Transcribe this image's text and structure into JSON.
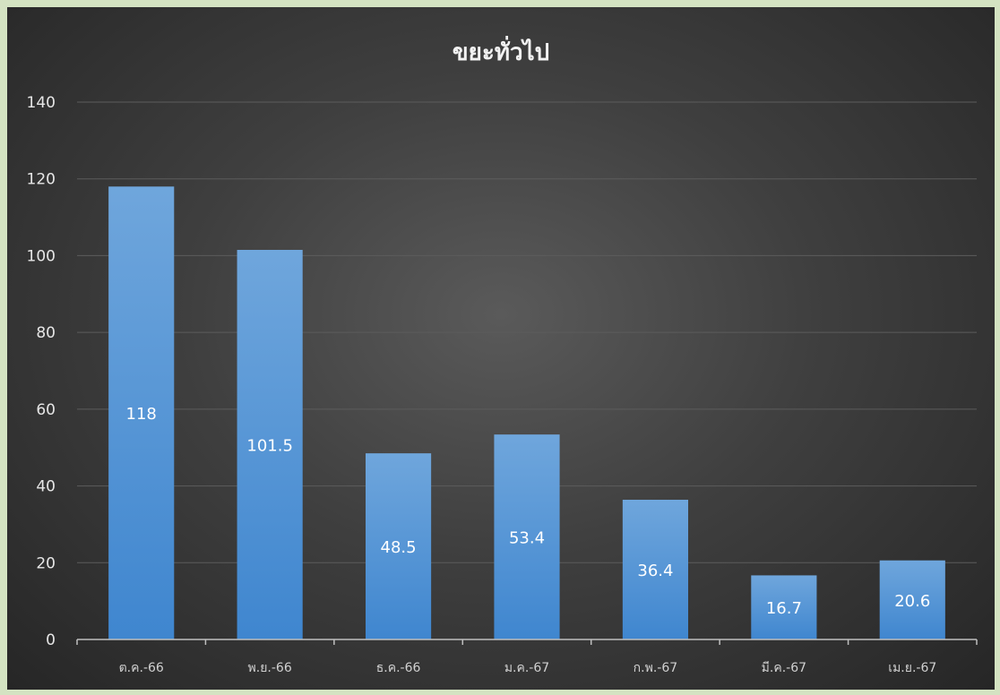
{
  "chart_data": {
    "type": "bar",
    "title": "ขยะทั่วไป",
    "categories": [
      "ต.ค.-66",
      "พ.ย.-66",
      "ธ.ค.-66",
      "ม.ค.-67",
      "ก.พ.-67",
      "มี.ค.-67",
      "เม.ย.-67"
    ],
    "values": [
      118,
      101.5,
      48.5,
      53.4,
      36.4,
      16.7,
      20.6
    ],
    "data_labels": [
      "118",
      "101.5",
      "48.5",
      "53.4",
      "36.4",
      "16.7",
      "20.6"
    ],
    "ylim": [
      0,
      140
    ],
    "yticks": [
      0,
      20,
      40,
      60,
      80,
      100,
      120,
      140
    ],
    "grid": true,
    "colors": {
      "bar_top": "#6fa6dc",
      "bar_bottom": "#3f86cf",
      "grid": "#5c5c5c",
      "axis": "#bfbfbf"
    }
  }
}
